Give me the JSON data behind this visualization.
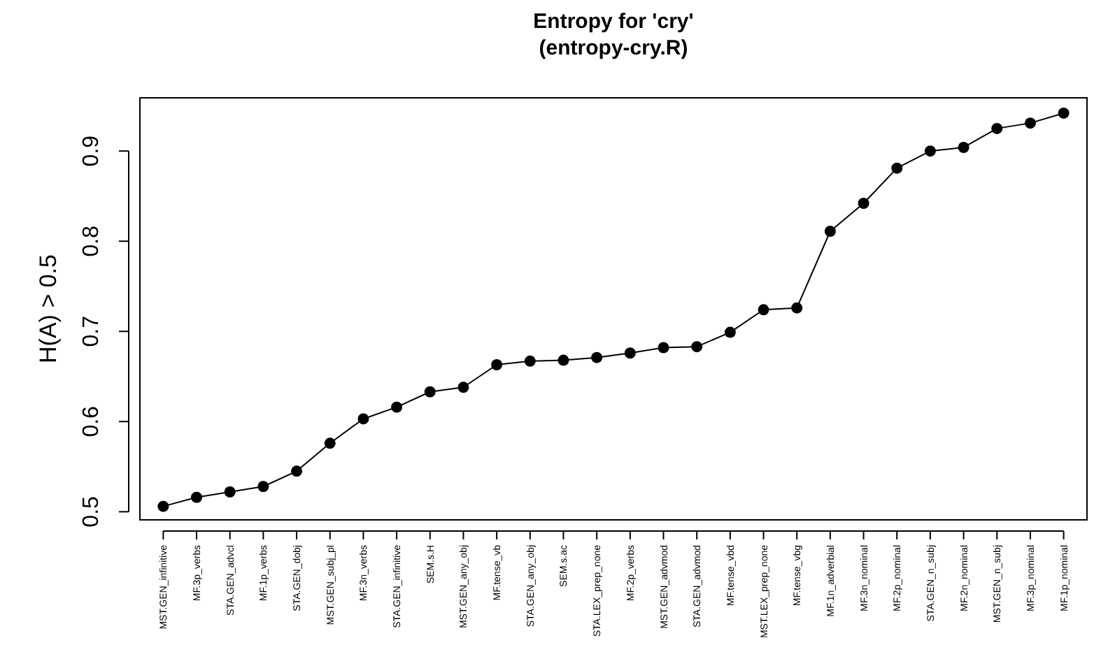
{
  "chart_data": {
    "type": "line",
    "title": "Entropy for 'cry'\n(entropy-cry.R)",
    "ylabel": "H(A) > 0.5",
    "categories": [
      "MST.GEN_infinitive",
      "MF.3p_verbs",
      "STA.GEN_advcl",
      "MF.1p_verbs",
      "STA.GEN_dobj",
      "MST.GEN_subj_pl",
      "MF.3n_verbs",
      "STA.GEN_infinitive",
      "SEM.s.H",
      "MST.GEN_any_obj",
      "MF.tense_vb",
      "STA.GEN_any_obj",
      "SEM.s.ac",
      "STA.LEX_prep_none",
      "MF.2p_verbs",
      "MST.GEN_advmod",
      "STA.GEN_advmod",
      "MF.tense_vbd",
      "MST.LEX_prep_none",
      "MF.tense_vbg",
      "MF.1n_adverbial",
      "MF.3n_nominal",
      "MF.2p_nominal",
      "STA.GEN_n_subj",
      "MF.2n_nominal",
      "MST.GEN_n_subj",
      "MF.3p_nominal",
      "MF.1p_nominal"
    ],
    "values": [
      0.506,
      0.516,
      0.522,
      0.528,
      0.545,
      0.576,
      0.603,
      0.616,
      0.633,
      0.638,
      0.663,
      0.667,
      0.668,
      0.671,
      0.676,
      0.682,
      0.683,
      0.699,
      0.724,
      0.726,
      0.811,
      0.842,
      0.881,
      0.9,
      0.904,
      0.925,
      0.931,
      0.942
    ],
    "color": "#000000",
    "marker": "circle",
    "line_style": "solid",
    "ylim": [
      0.491,
      0.959
    ],
    "yticks": [
      0.5,
      0.6,
      0.7,
      0.8,
      0.9
    ],
    "grid": false
  }
}
